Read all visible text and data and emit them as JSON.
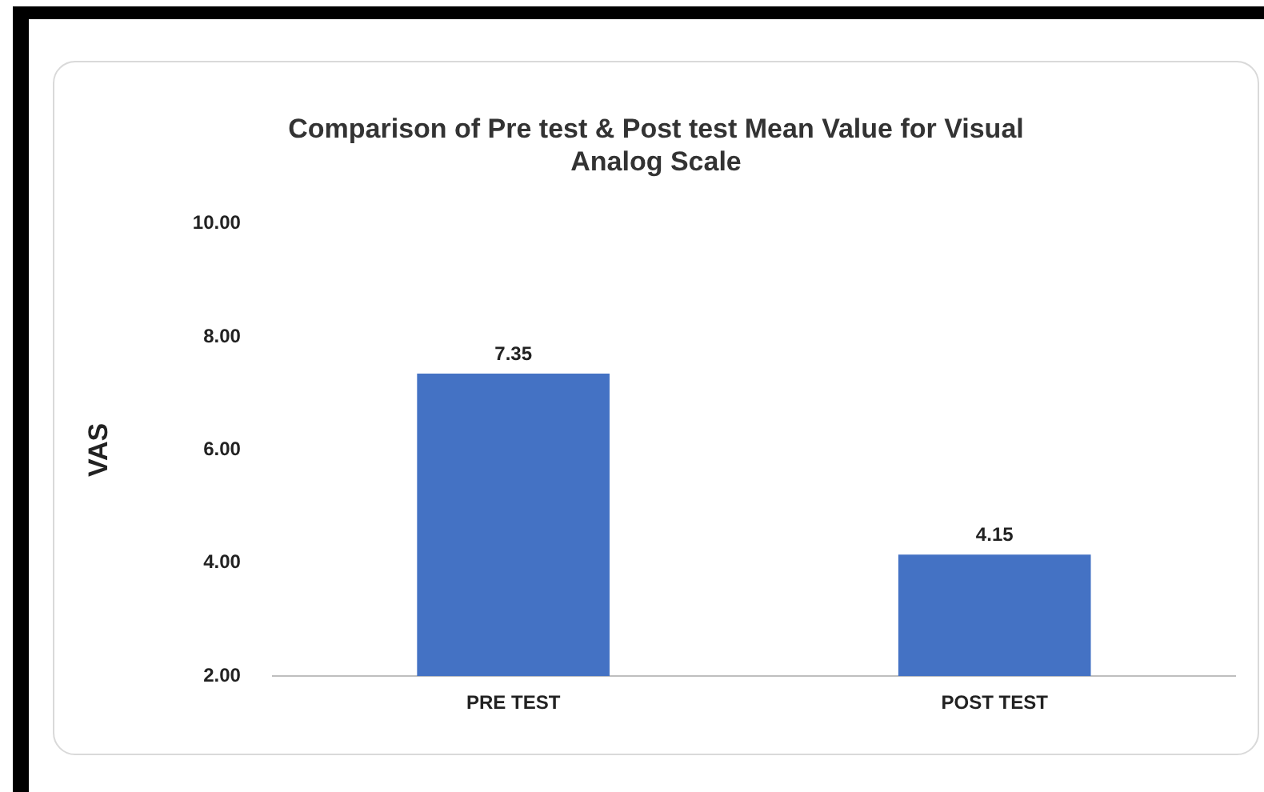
{
  "chart_data": {
    "type": "bar",
    "title": "Comparison of Pre test & Post test Mean Value for Visual Analog Scale",
    "ylabel": "VAS",
    "categories": [
      "PRE TEST",
      "POST TEST"
    ],
    "values": [
      7.35,
      4.15
    ],
    "color": "#4472c4",
    "ylim": [
      2,
      10
    ],
    "yticks": [
      {
        "value": 2,
        "label": "2.00"
      },
      {
        "value": 4,
        "label": "4.00"
      },
      {
        "value": 6,
        "label": "6.00"
      },
      {
        "value": 8,
        "label": "8.00"
      },
      {
        "value": 10,
        "label": "10.00"
      }
    ],
    "grid": false,
    "legend": false,
    "data_labels": true
  }
}
